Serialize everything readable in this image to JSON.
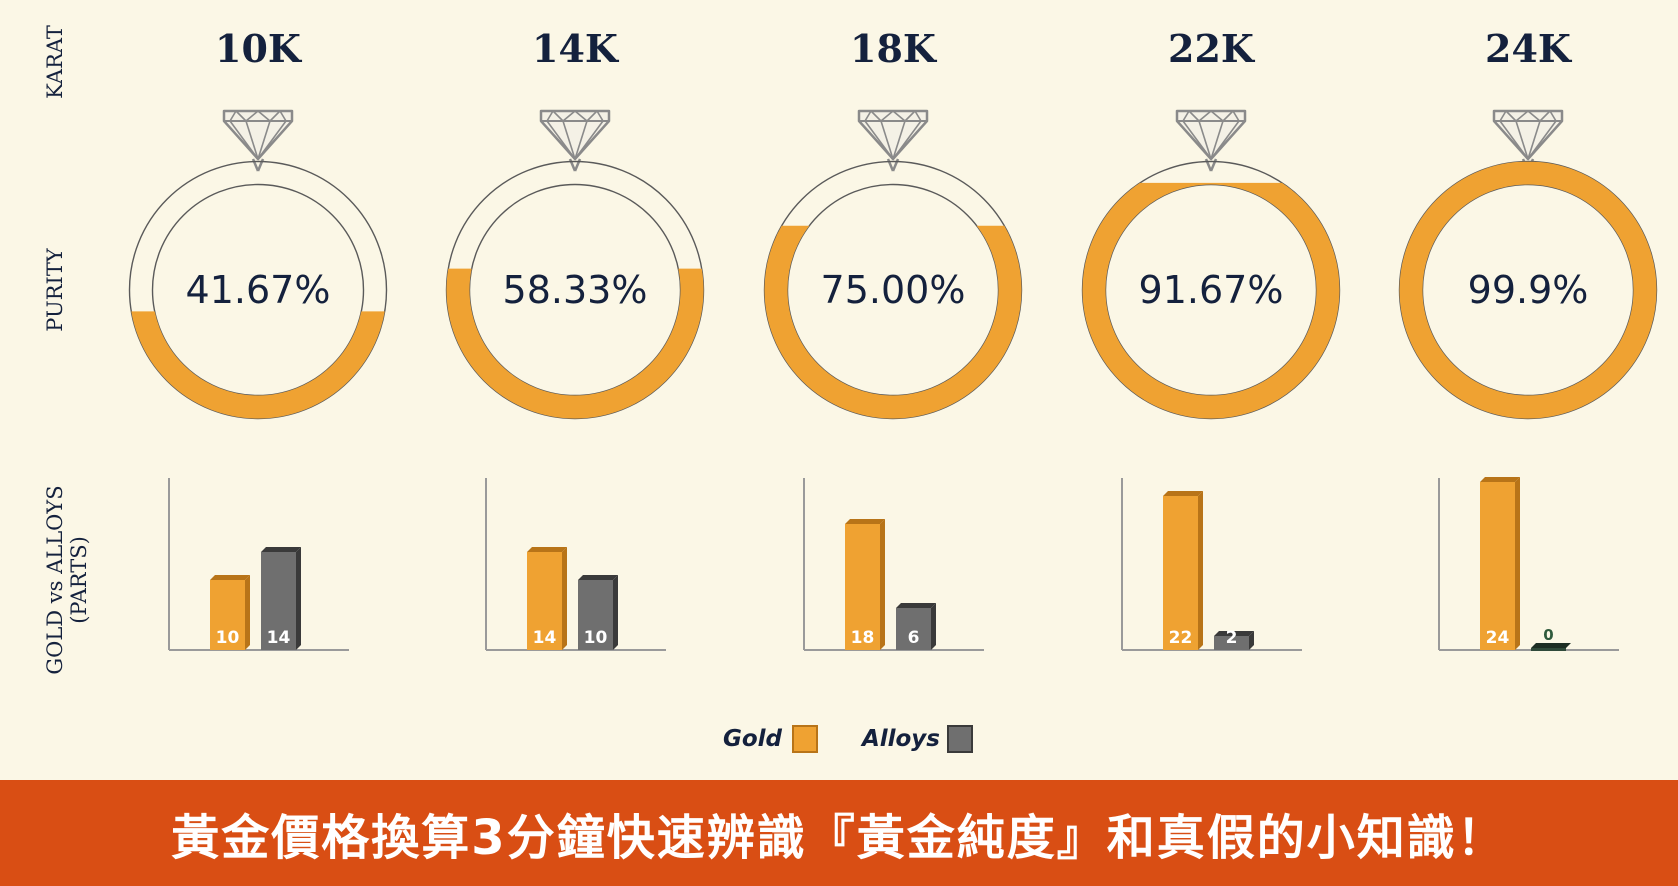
{
  "row_labels": {
    "karat": "KARAT",
    "purity": "PURITY",
    "gold_vs_alloys_line1": "GOLD vs ALLOYS",
    "gold_vs_alloys_line2": "(PARTS)"
  },
  "legend": {
    "gold": "Gold",
    "alloys": "Alloys"
  },
  "banner": {
    "text": "黃金價格換算3分鐘快速辨識『黃金純度』和真假的小知識！"
  },
  "colors": {
    "background": "#fbf7e6",
    "gold": "#efa232",
    "gold_dark": "#b87418",
    "alloys": "#6f6f6f",
    "alloys_dark": "#3a3a3a",
    "text": "#14213d",
    "banner": "#d94e14"
  },
  "icons": {
    "diamond": "diamond-icon"
  },
  "chart_data": [
    {
      "type": "donut",
      "xlabel": "",
      "ylabel": "PURITY",
      "categories": [
        "10K",
        "14K",
        "18K",
        "22K",
        "24K"
      ],
      "values": [
        41.67,
        58.33,
        75.0,
        91.67,
        99.9
      ],
      "value_labels": [
        "41.67%",
        "58.33%",
        "75.00%",
        "91.67%",
        "99.9%"
      ],
      "unit": "%",
      "ylim": [
        0,
        100
      ]
    },
    {
      "type": "bar",
      "xlabel": "",
      "ylabel": "GOLD vs ALLOYS (PARTS)",
      "categories": [
        "10K",
        "14K",
        "18K",
        "22K",
        "24K"
      ],
      "series": [
        {
          "name": "Gold",
          "values": [
            10,
            14,
            18,
            22,
            24
          ]
        },
        {
          "name": "Alloys",
          "values": [
            14,
            10,
            6,
            2,
            0
          ]
        }
      ],
      "ylim": [
        0,
        24
      ],
      "grid": false,
      "legend_placement": "bottom"
    }
  ]
}
